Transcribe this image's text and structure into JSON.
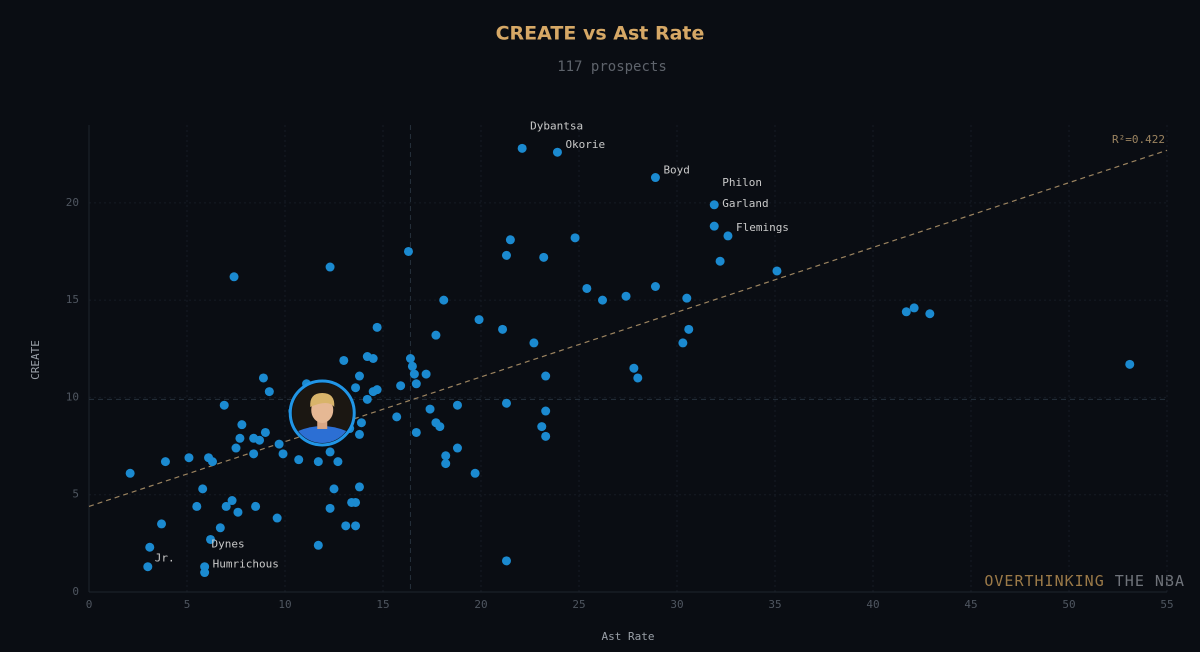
{
  "chart_data": {
    "type": "scatter",
    "title": "CREATE vs Ast Rate",
    "subtitle": "117 prospects",
    "x_label": "Ast Rate",
    "y_label": "CREATE",
    "color": "#1b8ad0",
    "grid": true,
    "xlim": [
      0,
      55
    ],
    "ylim": [
      0,
      24
    ],
    "xticks": [
      0,
      5,
      10,
      15,
      20,
      25,
      30,
      35,
      40,
      45,
      50,
      55
    ],
    "yticks": [
      0,
      5,
      10,
      15,
      20
    ],
    "x": [
      2.1,
      3.9,
      3.7,
      3.1,
      3.0,
      5.1,
      5.5,
      5.8,
      6.1,
      6.3,
      5.9,
      5.9,
      6.2,
      6.7,
      6.9,
      7.0,
      7.3,
      7.6,
      7.4,
      7.5,
      7.7,
      7.8,
      8.4,
      8.4,
      8.5,
      8.7,
      8.9,
      9.0,
      9.2,
      9.6,
      9.7,
      9.9,
      10.4,
      10.7,
      11.1,
      11.2,
      11.7,
      11.7,
      12.3,
      12.3,
      12.3,
      12.5,
      12.7,
      13.0,
      13.1,
      13.3,
      13.4,
      13.6,
      13.6,
      13.6,
      13.8,
      13.8,
      13.8,
      13.9,
      14.2,
      14.2,
      14.5,
      14.5,
      14.7,
      14.7,
      15.7,
      15.9,
      16.3,
      16.4,
      16.5,
      16.6,
      16.7,
      16.7,
      17.2,
      17.4,
      17.7,
      17.7,
      17.9,
      18.1,
      18.2,
      18.2,
      18.8,
      18.8,
      19.7,
      19.9,
      21.1,
      21.3,
      21.3,
      21.3,
      21.5,
      22.1,
      22.7,
      23.1,
      23.2,
      23.3,
      23.3,
      23.3,
      23.9,
      24.8,
      25.4,
      26.2,
      27.4,
      27.8,
      28.0,
      28.9,
      28.9,
      30.3,
      30.5,
      30.6,
      31.9,
      31.9,
      32.2,
      32.6,
      35.1,
      41.7,
      42.1,
      42.9,
      53.1
    ],
    "values": [
      6.1,
      6.7,
      3.5,
      2.3,
      1.3,
      6.9,
      4.4,
      5.3,
      6.9,
      6.7,
      1.3,
      1.0,
      2.7,
      3.3,
      9.6,
      4.4,
      4.7,
      4.1,
      16.2,
      7.4,
      7.9,
      8.6,
      7.1,
      7.9,
      4.4,
      7.8,
      11.0,
      8.2,
      10.3,
      3.8,
      7.6,
      7.1,
      9.3,
      6.8,
      10.7,
      8.5,
      6.7,
      2.4,
      7.2,
      16.7,
      4.3,
      5.3,
      6.7,
      11.9,
      3.4,
      8.4,
      4.6,
      4.6,
      3.4,
      10.5,
      8.1,
      5.4,
      11.1,
      8.7,
      9.9,
      12.1,
      12.0,
      10.3,
      13.6,
      10.4,
      9.0,
      10.6,
      17.5,
      12.0,
      11.6,
      11.2,
      10.7,
      8.2,
      11.2,
      9.4,
      13.2,
      8.7,
      8.5,
      15.0,
      7.0,
      6.6,
      9.6,
      7.4,
      6.1,
      14.0,
      13.5,
      17.3,
      9.7,
      1.6,
      18.1,
      22.8,
      12.8,
      8.5,
      17.2,
      11.1,
      9.3,
      8.0,
      22.6,
      18.2,
      15.6,
      15.0,
      15.2,
      11.5,
      11.0,
      15.7,
      21.3,
      12.8,
      15.1,
      13.5,
      19.9,
      18.8,
      17.0,
      18.3,
      16.5,
      14.4,
      14.6,
      14.3,
      11.7
    ],
    "labels": [
      null,
      null,
      null,
      null,
      "Jr.",
      null,
      null,
      null,
      null,
      null,
      "Humrichous",
      null,
      "Dynes",
      null,
      null,
      null,
      null,
      null,
      null,
      null,
      null,
      null,
      null,
      null,
      null,
      null,
      null,
      null,
      null,
      null,
      null,
      null,
      null,
      null,
      null,
      null,
      null,
      null,
      null,
      null,
      null,
      null,
      null,
      null,
      null,
      null,
      null,
      null,
      null,
      null,
      null,
      null,
      null,
      null,
      null,
      null,
      null,
      null,
      null,
      null,
      null,
      null,
      null,
      null,
      null,
      null,
      null,
      null,
      null,
      null,
      null,
      null,
      null,
      null,
      null,
      null,
      null,
      null,
      null,
      null,
      null,
      null,
      null,
      null,
      null,
      "Dybantsa",
      null,
      null,
      null,
      null,
      null,
      null,
      "Okorie",
      null,
      null,
      null,
      null,
      null,
      null,
      null,
      "Boyd",
      null,
      null,
      null,
      "Philon",
      "Garland",
      null,
      "Flemings",
      null,
      null,
      null,
      null,
      null
    ],
    "highlight": {
      "x": 11.9,
      "y": 9.2
    },
    "trendline": {
      "x": [
        0,
        55
      ],
      "y": [
        4.4,
        22.7
      ],
      "label": "R²=0.422",
      "color": "#9c8460"
    },
    "reference_lines": {
      "x": 16.4,
      "y": 9.9
    },
    "watermark": [
      "OVERTHINKING",
      "THE NBA"
    ]
  }
}
